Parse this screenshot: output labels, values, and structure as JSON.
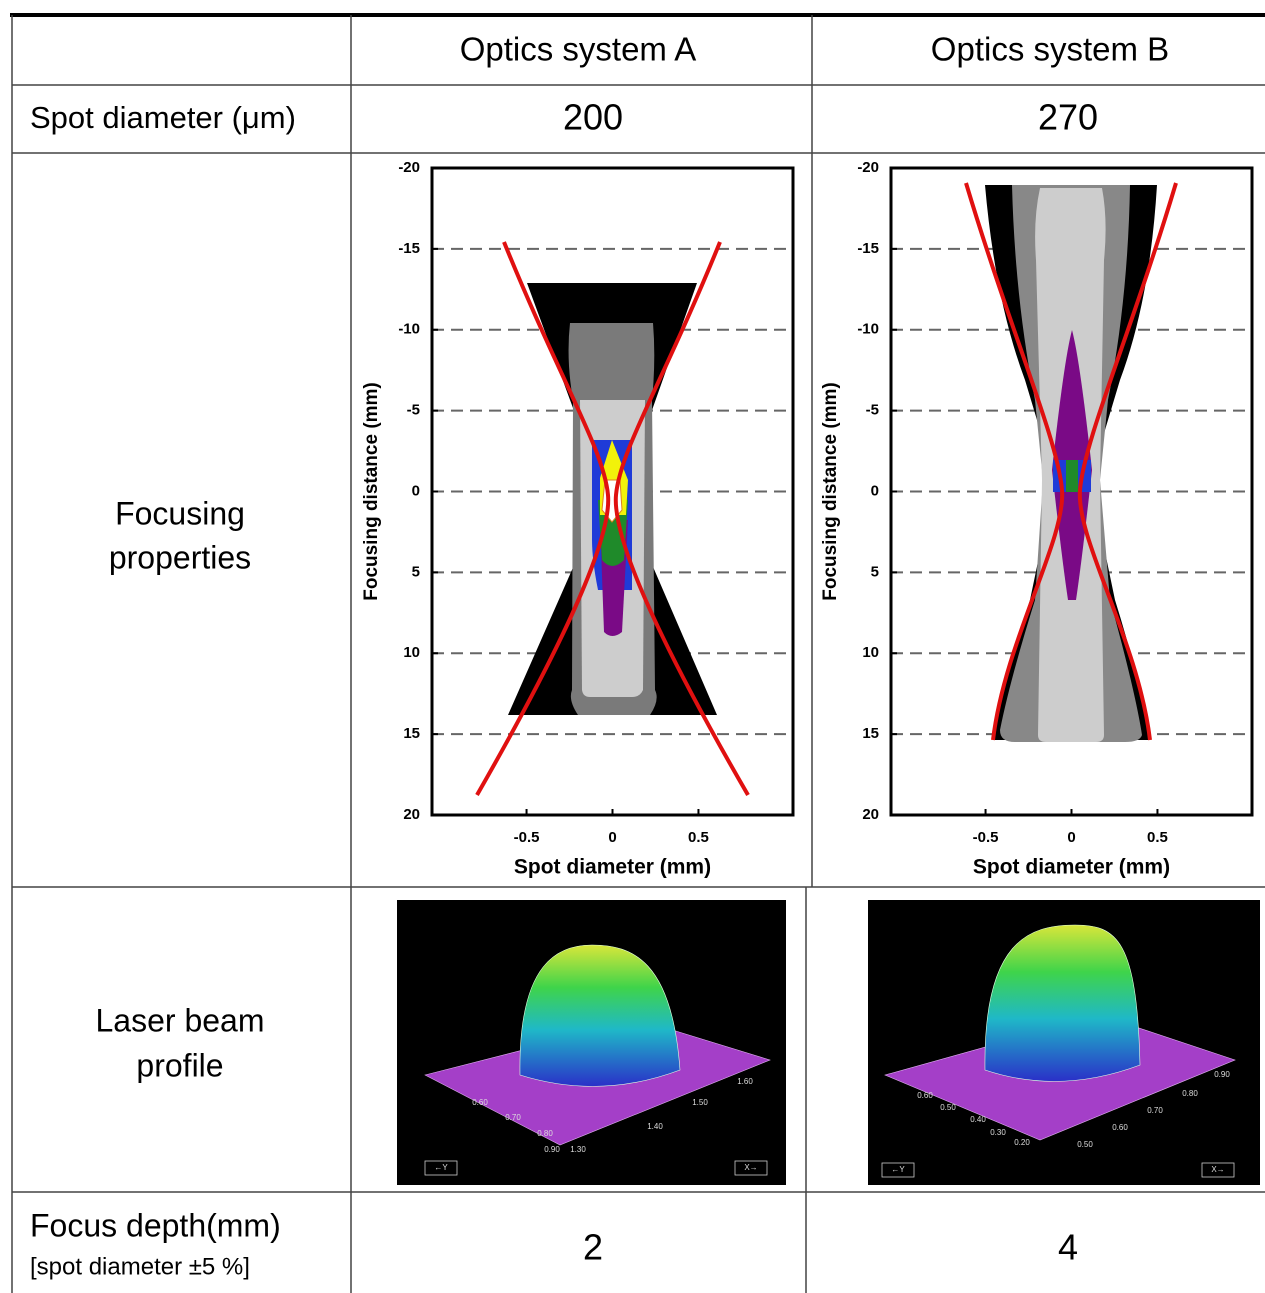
{
  "table": {
    "header": [
      "Optics system A",
      "Optics system B"
    ],
    "rows": [
      {
        "label": [
          "Spot diameter (μm)"
        ],
        "cells": [
          200,
          270
        ]
      },
      {
        "label": [
          "Focusing",
          "properties"
        ]
      },
      {
        "label": [
          "Laser beam",
          "profile"
        ]
      },
      {
        "label": [
          "Focus depth(mm)",
          "[spot diameter ±5 %]"
        ],
        "cells": [
          2,
          4
        ]
      }
    ]
  },
  "charts": [
    {
      "type": "contour",
      "xlabel": "Spot diameter (mm)",
      "ylabel": "Focusing distance (mm)",
      "xlim": [
        -1.05,
        1.05
      ],
      "xticks": [
        -0.5,
        0,
        0.5
      ],
      "ylim": [
        -20,
        20
      ],
      "yticks": [
        -20,
        -15,
        -10,
        -5,
        0,
        5,
        10,
        15,
        20
      ],
      "y_inverted": true,
      "grid": true
    },
    {
      "type": "contour",
      "xlabel": "Spot diameter (mm)",
      "ylabel": "Focusing distance (mm)",
      "xlim": [
        -1.05,
        1.05
      ],
      "xticks": [
        -0.5,
        0,
        0.5
      ],
      "ylim": [
        -20,
        20
      ],
      "yticks": [
        -20,
        -15,
        -10,
        -5,
        0,
        5,
        10,
        15,
        20
      ],
      "y_inverted": true,
      "grid": true
    }
  ],
  "profiles": [
    {
      "labels": [
        "0.60",
        "0.70",
        "0.80",
        "0.90",
        "1.30",
        "1.40",
        "1.50",
        "1.60"
      ],
      "y_axis": "←Y",
      "x_axis": "X→"
    },
    {
      "labels": [
        "0.60",
        "0.50",
        "0.40",
        "0.30",
        "0.20",
        "0.50",
        "0.60",
        "0.70",
        "0.80",
        "0.90"
      ],
      "y_axis": "←Y",
      "x_axis": "X→"
    }
  ]
}
